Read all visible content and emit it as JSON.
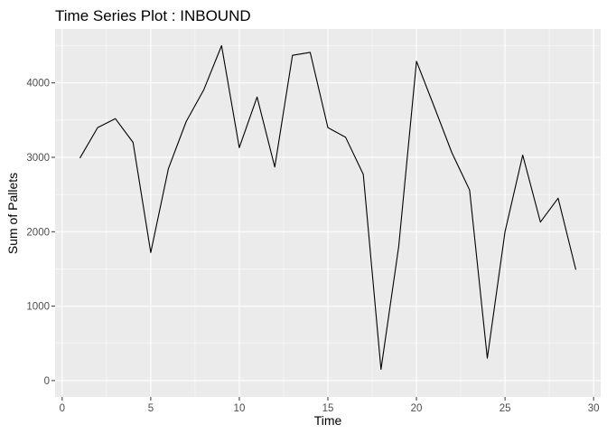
{
  "chart_data": {
    "type": "line",
    "title": "Time Series Plot : INBOUND",
    "xlabel": "Time",
    "ylabel": "Sum of Pallets",
    "xlim": [
      -0.4,
      30.4
    ],
    "ylim": [
      -220,
      4725
    ],
    "xticks": [
      0,
      5,
      10,
      15,
      20,
      25,
      30
    ],
    "yticks": [
      0,
      1000,
      2000,
      3000,
      4000
    ],
    "grid": true,
    "legend": "none",
    "colors": {
      "panel_background": "#ebebeb",
      "grid_major": "#ffffff",
      "line": "#000000",
      "tick_label": "#4d4d4d"
    },
    "series": [
      {
        "x": [
          1,
          2,
          3,
          4,
          5,
          6,
          7,
          8,
          9,
          10,
          11,
          12,
          13,
          14,
          15,
          16,
          17,
          18,
          19,
          20,
          21,
          22,
          23,
          24,
          25,
          26,
          27,
          28,
          29
        ],
        "values": [
          2990,
          3400,
          3520,
          3200,
          1720,
          2850,
          3480,
          3910,
          4500,
          3130,
          3810,
          2870,
          4370,
          4410,
          3400,
          3270,
          2770,
          150,
          1800,
          4290,
          3680,
          3060,
          2560,
          300,
          2000,
          3030,
          2130,
          2450,
          1490
        ]
      }
    ]
  }
}
